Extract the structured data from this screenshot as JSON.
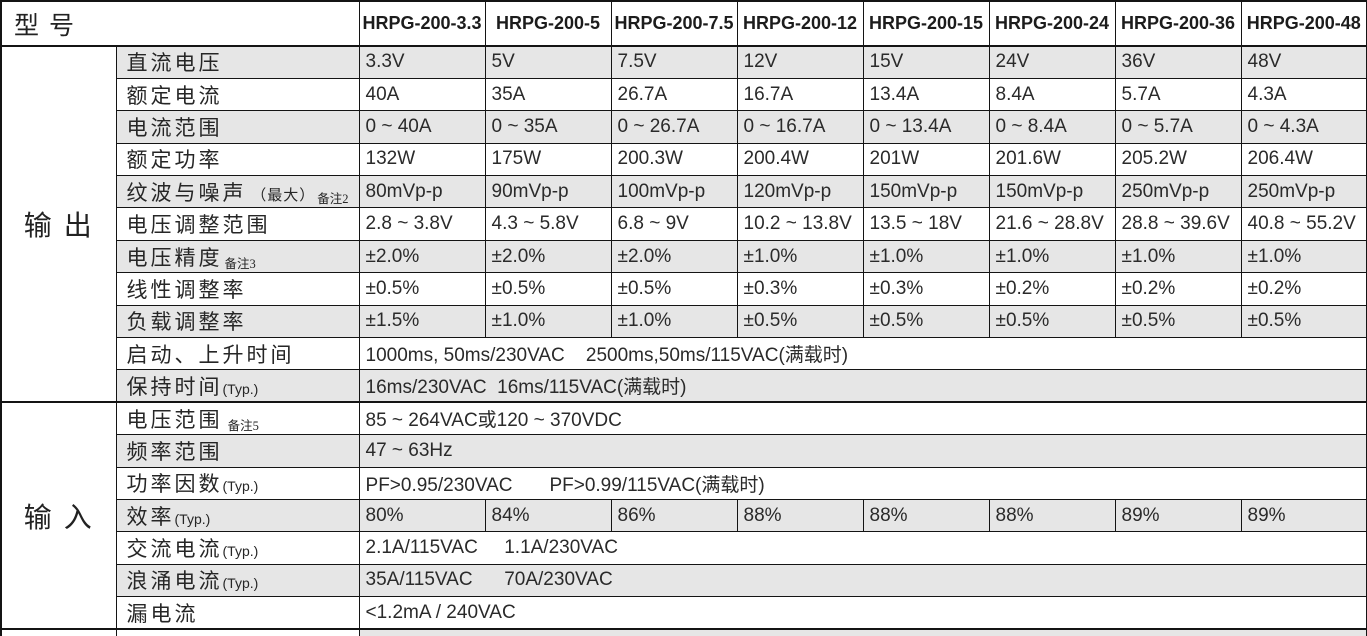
{
  "colors": {
    "row_shade": "#e6e6e6",
    "border": "#141414",
    "text": "#262626"
  },
  "table": {
    "corner_label": "型号",
    "models": [
      "HRPG-200-3.3",
      "HRPG-200-5",
      "HRPG-200-7.5",
      "HRPG-200-12",
      "HRPG-200-15",
      "HRPG-200-24",
      "HRPG-200-36",
      "HRPG-200-48"
    ],
    "sections": [
      {
        "name": "output",
        "group_label": "输出",
        "rows": [
          {
            "name": "dc-voltage",
            "label": "直流电压",
            "values": [
              "3.3V",
              "5V",
              "7.5V",
              "12V",
              "15V",
              "24V",
              "36V",
              "48V"
            ]
          },
          {
            "name": "rated-current",
            "label": "额定电流",
            "values": [
              "40A",
              "35A",
              "26.7A",
              "16.7A",
              "13.4A",
              "8.4A",
              "5.7A",
              "4.3A"
            ]
          },
          {
            "name": "current-range",
            "label": "电流范围",
            "values": [
              "0 ~ 40A",
              "0 ~ 35A",
              "0 ~ 26.7A",
              "0 ~ 16.7A",
              "0 ~ 13.4A",
              "0 ~ 8.4A",
              "0 ~ 5.7A",
              "0 ~ 4.3A"
            ]
          },
          {
            "name": "rated-power",
            "label": "额定功率",
            "values": [
              "132W",
              "175W",
              "200.3W",
              "200.4W",
              "201W",
              "201.6W",
              "205.2W",
              "206.4W"
            ]
          },
          {
            "name": "ripple-noise",
            "label": "纹波与噪声",
            "label_note_cjk": " （最大）",
            "label_sub": "备注2",
            "values": [
              "80mVp-p",
              "90mVp-p",
              "100mVp-p",
              "120mVp-p",
              "150mVp-p",
              "150mVp-p",
              "250mVp-p",
              "250mVp-p"
            ]
          },
          {
            "name": "voltage-adjust-range",
            "label": "电压调整范围",
            "values": [
              "2.8 ~ 3.8V",
              "4.3 ~ 5.8V",
              "6.8 ~ 9V",
              "10.2 ~ 13.8V",
              "13.5 ~ 18V",
              "21.6 ~ 28.8V",
              "28.8 ~ 39.6V",
              "40.8 ~ 55.2V"
            ]
          },
          {
            "name": "voltage-tolerance",
            "label": "电压精度",
            "label_sub": "备注3",
            "values": [
              "±2.0%",
              "±2.0%",
              "±2.0%",
              "±1.0%",
              "±1.0%",
              "±1.0%",
              "±1.0%",
              "±1.0%"
            ]
          },
          {
            "name": "line-regulation",
            "label": "线性调整率",
            "values": [
              "±0.5%",
              "±0.5%",
              "±0.5%",
              "±0.3%",
              "±0.3%",
              "±0.2%",
              "±0.2%",
              "±0.2%"
            ]
          },
          {
            "name": "load-regulation",
            "label": "负载调整率",
            "values": [
              "±1.5%",
              "±1.0%",
              "±1.0%",
              "±0.5%",
              "±0.5%",
              "±0.5%",
              "±0.5%",
              "±0.5%"
            ]
          },
          {
            "name": "setup-rise-time",
            "label": "启动、上升时间",
            "value": "1000ms, 50ms/230VAC    2500ms,50ms/115VAC(满载时)"
          },
          {
            "name": "hold-up-time",
            "label": "保持时间",
            "label_note_latin": "(Typ.)",
            "value": "16ms/230VAC  16ms/115VAC(满载时)"
          }
        ]
      },
      {
        "name": "input",
        "group_label": "输入",
        "rows": [
          {
            "name": "voltage-range",
            "label": "电压范围",
            "label_sub": "  备注5",
            "value": "85 ~ 264VAC或120 ~ 370VDC"
          },
          {
            "name": "frequency-range",
            "label": "频率范围",
            "value": "47 ~ 63Hz"
          },
          {
            "name": "power-factor",
            "label": "功率因数",
            "label_note_latin": "(Typ.)",
            "value": "PF>0.95/230VAC       PF>0.99/115VAC(满载时)"
          },
          {
            "name": "efficiency",
            "label": "效率",
            "label_note_latin": "(Typ.)",
            "values": [
              "80%",
              "84%",
              "86%",
              "88%",
              "88%",
              "88%",
              "89%",
              "89%"
            ]
          },
          {
            "name": "ac-current",
            "label": "交流电流",
            "label_note_latin": "(Typ.)",
            "value": "2.1A/115VAC     1.1A/230VAC"
          },
          {
            "name": "inrush-current",
            "label": "浪涌电流",
            "label_note_latin": "(Typ.)",
            "value": "35A/115VAC      70A/230VAC"
          },
          {
            "name": "leakage-current",
            "label": "漏电流",
            "value": "<1.2mA / 240VAC"
          }
        ]
      }
    ]
  }
}
